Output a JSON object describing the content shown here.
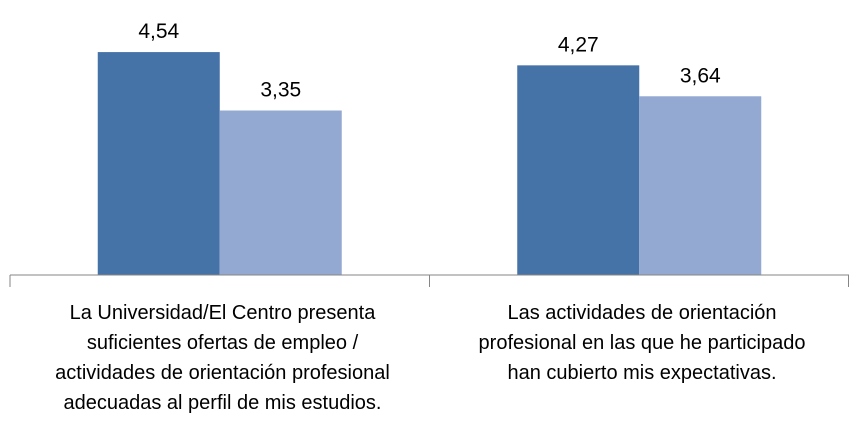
{
  "chart_data": {
    "type": "bar",
    "categories": [
      "La Universidad/El Centro presenta\nsuficientes ofertas de empleo /\nactividades de orientación profesional\nadecuadas al perfil de mis estudios.",
      "Las actividades de orientación\nprofesional en las que he participado\nhan cubierto mis expectativas."
    ],
    "series": [
      {
        "color": "#4572a7",
        "values": [
          4.54,
          4.27
        ],
        "value_labels": [
          "4,54",
          "4,27"
        ]
      },
      {
        "color": "#93a9d1",
        "values": [
          3.35,
          3.64
        ],
        "value_labels": [
          "3,35",
          "3,64"
        ]
      }
    ],
    "ylim": [
      0,
      5
    ]
  }
}
